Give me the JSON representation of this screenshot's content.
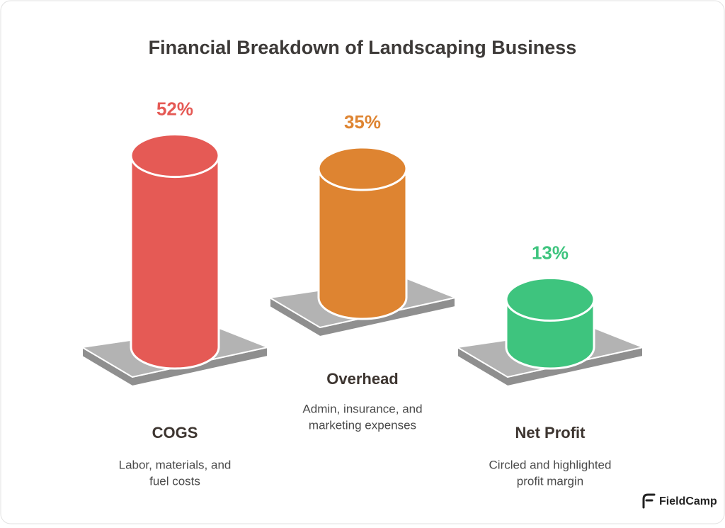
{
  "chart_data": {
    "type": "bar",
    "title": "Financial Breakdown of Landscaping Business",
    "categories": [
      "COGS",
      "Overhead",
      "Net Profit"
    ],
    "descriptions": [
      [
        "Labor, materials, and",
        "fuel costs"
      ],
      [
        "Admin, insurance, and",
        "marketing expenses"
      ],
      [
        "Circled and highlighted",
        "profit margin"
      ]
    ],
    "values": [
      52,
      35,
      13
    ],
    "value_labels": [
      "52%",
      "35%",
      "13%"
    ],
    "colors": [
      "#e55a55",
      "#de8431",
      "#3ec47e"
    ]
  },
  "brand": "FieldCamp"
}
